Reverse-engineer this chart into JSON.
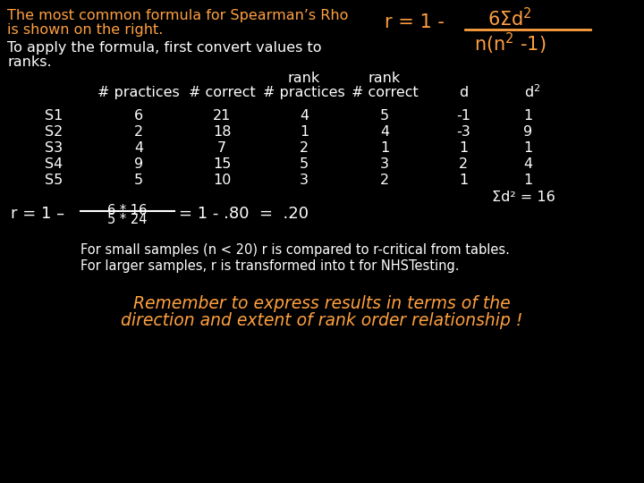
{
  "bg_color": "#000000",
  "white_text": "#ffffff",
  "orange_text": "#FFA040",
  "title_line1": "The most common formula for Spearman’s Rho",
  "title_line2": "is shown on the right.",
  "sub_line1": "To apply the formula, first convert values to",
  "sub_line2": "ranks.",
  "row_labels": [
    "S1",
    "S2",
    "S3",
    "S4",
    "S5"
  ],
  "table_data": [
    [
      6,
      21,
      4,
      5,
      -1,
      1
    ],
    [
      2,
      18,
      1,
      4,
      -3,
      9
    ],
    [
      4,
      7,
      2,
      1,
      1,
      1
    ],
    [
      9,
      15,
      5,
      3,
      2,
      4
    ],
    [
      5,
      10,
      3,
      2,
      1,
      1
    ]
  ],
  "sum_d2": "Σd² = 16",
  "numerator": "6 * 16",
  "denominator": "5 * 24",
  "note1": "For small samples (n < 20) r is compared to r-critical from tables.",
  "note2": "For larger samples, r is transformed into t for NHSTesting.",
  "reminder1": "Remember to express results in terms of the",
  "reminder2": "direction and extent of rank order relationship !"
}
